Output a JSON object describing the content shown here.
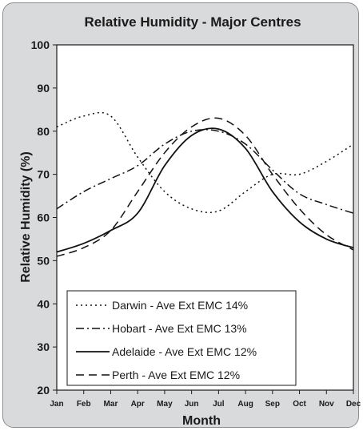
{
  "chart_data": {
    "type": "line",
    "title": "Relative Humidity - Major Centres",
    "xlabel": "Month",
    "ylabel": "Relative Humidity (%)",
    "categories": [
      "Jan",
      "Feb",
      "Mar",
      "Apr",
      "May",
      "Jun",
      "Jul",
      "Aug",
      "Sep",
      "Oct",
      "Nov",
      "Dec"
    ],
    "ylim": [
      20,
      100
    ],
    "yticks": [
      20,
      30,
      40,
      50,
      60,
      70,
      80,
      90,
      100
    ],
    "grid": false,
    "legend_position": "bottom-left",
    "series": [
      {
        "name": "Darwin - Ave Ext EMC 14%",
        "dash": "dotted",
        "values": [
          81,
          83.5,
          83.5,
          74,
          66,
          62,
          61.5,
          66,
          70,
          70,
          73,
          77
        ]
      },
      {
        "name": "Hobart - Ave Ext EMC 13%",
        "dash": "dashdot",
        "values": [
          62,
          66,
          69,
          72,
          77,
          80,
          80,
          77,
          71,
          65.5,
          63,
          61
        ]
      },
      {
        "name": "Adelaide - Ave Ext EMC 12%",
        "dash": "solid",
        "values": [
          52,
          54,
          57,
          61,
          72,
          79,
          80.5,
          76,
          66,
          59,
          55,
          53
        ]
      },
      {
        "name": "Perth - Ave Ext EMC 12%",
        "dash": "dashed",
        "values": [
          51,
          53,
          57,
          66,
          75,
          81,
          83,
          79,
          70,
          62,
          56,
          52.5
        ]
      }
    ]
  }
}
